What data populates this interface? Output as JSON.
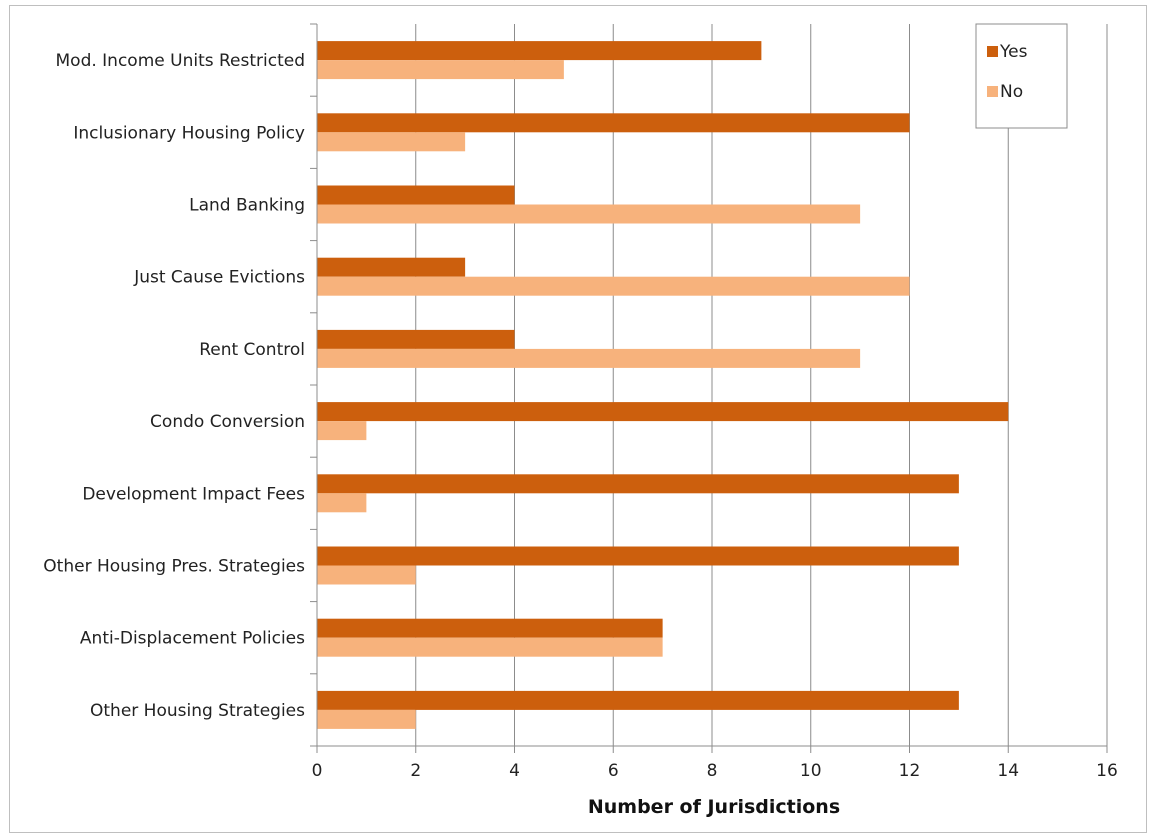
{
  "chart_data": {
    "type": "bar",
    "orientation": "horizontal",
    "title": "",
    "xlabel": "Number of Jurisdictions",
    "ylabel": "",
    "xlim": [
      0,
      16
    ],
    "xticks": [
      0,
      2,
      4,
      6,
      8,
      10,
      12,
      14,
      16
    ],
    "grid": "vertical",
    "legend": {
      "position": "top-right",
      "entries": [
        "Yes",
        "No"
      ]
    },
    "categories": [
      "Mod. Income Units Restricted",
      "Inclusionary Housing Policy",
      "Land Banking",
      "Just Cause Evictions",
      "Rent Control",
      "Condo Conversion",
      "Development Impact Fees",
      "Other Housing Pres. Strategies",
      "Anti-Displacement Policies",
      "Other Housing Strategies"
    ],
    "series": [
      {
        "name": "Yes",
        "color": "#cc5f0d",
        "values": [
          9,
          12,
          4,
          3,
          4,
          14,
          13,
          13,
          7,
          13
        ]
      },
      {
        "name": "No",
        "color": "#f7b27c",
        "values": [
          5,
          3,
          11,
          12,
          11,
          1,
          1,
          2,
          7,
          2
        ]
      }
    ]
  }
}
